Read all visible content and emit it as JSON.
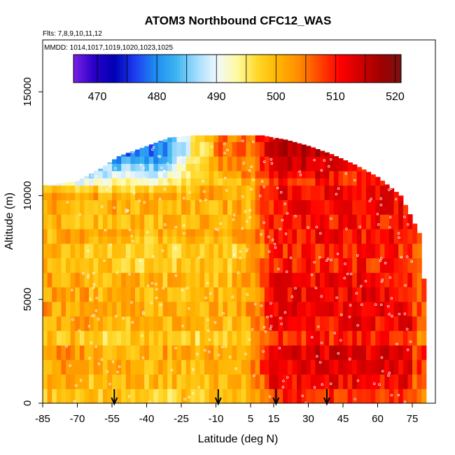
{
  "chart_data": {
    "type": "heatmap",
    "title": "ATOM3 Northbound CFC12_WAS",
    "flights_label": "Flts: 7,8,9,10,11,12",
    "dates_label": "MMDD: 1014,1017,1019,1020,1023,1025",
    "xlabel": "Latitude (deg N)",
    "ylabel": "Altitude (m)",
    "xlim": [
      -85,
      85
    ],
    "ylim": [
      0,
      17500
    ],
    "x_ticks": [
      -85,
      -70,
      -55,
      -40,
      -25,
      -10,
      5,
      15,
      30,
      45,
      60,
      75
    ],
    "y_ticks": [
      0,
      5000,
      10000,
      15000
    ],
    "colorbar": {
      "range": [
        466,
        521
      ],
      "ticks": [
        470,
        480,
        490,
        500,
        510,
        520
      ],
      "colors": [
        "#7a1fe6",
        "#2a00c8",
        "#0000b4",
        "#1e3cf0",
        "#1e8cf0",
        "#3cb4f0",
        "#a0dcff",
        "#f0f8ff",
        "#fffaa0",
        "#ffd728",
        "#ffb400",
        "#ff8c00",
        "#ff4600",
        "#ff0000",
        "#d20000",
        "#a00000",
        "#7a1010"
      ]
    },
    "altitude_envelope": [
      [
        -84,
        10500
      ],
      [
        -70,
        10700
      ],
      [
        -60,
        11300
      ],
      [
        -52,
        11900
      ],
      [
        -42,
        12300
      ],
      [
        -30,
        12800
      ],
      [
        -20,
        12900
      ],
      [
        -10,
        12900
      ],
      [
        0,
        12900
      ],
      [
        10,
        12900
      ],
      [
        20,
        12700
      ],
      [
        30,
        12400
      ],
      [
        40,
        12000
      ],
      [
        50,
        11500
      ],
      [
        60,
        10900
      ],
      [
        70,
        10000
      ],
      [
        78,
        8200
      ],
      [
        80,
        6000
      ]
    ],
    "field_description": {
      "background_ppt": 501,
      "south_lowlat_ppt": 499,
      "north_tropics_ppt": 511,
      "upper_trop_south_ppt": 478
    },
    "markers": [
      {
        "label": "arrow",
        "latitude": -54
      },
      {
        "label": "arrow",
        "latitude": -9
      },
      {
        "label": "arrow",
        "latitude": 16
      },
      {
        "label": "arrow",
        "latitude": 38
      }
    ]
  }
}
